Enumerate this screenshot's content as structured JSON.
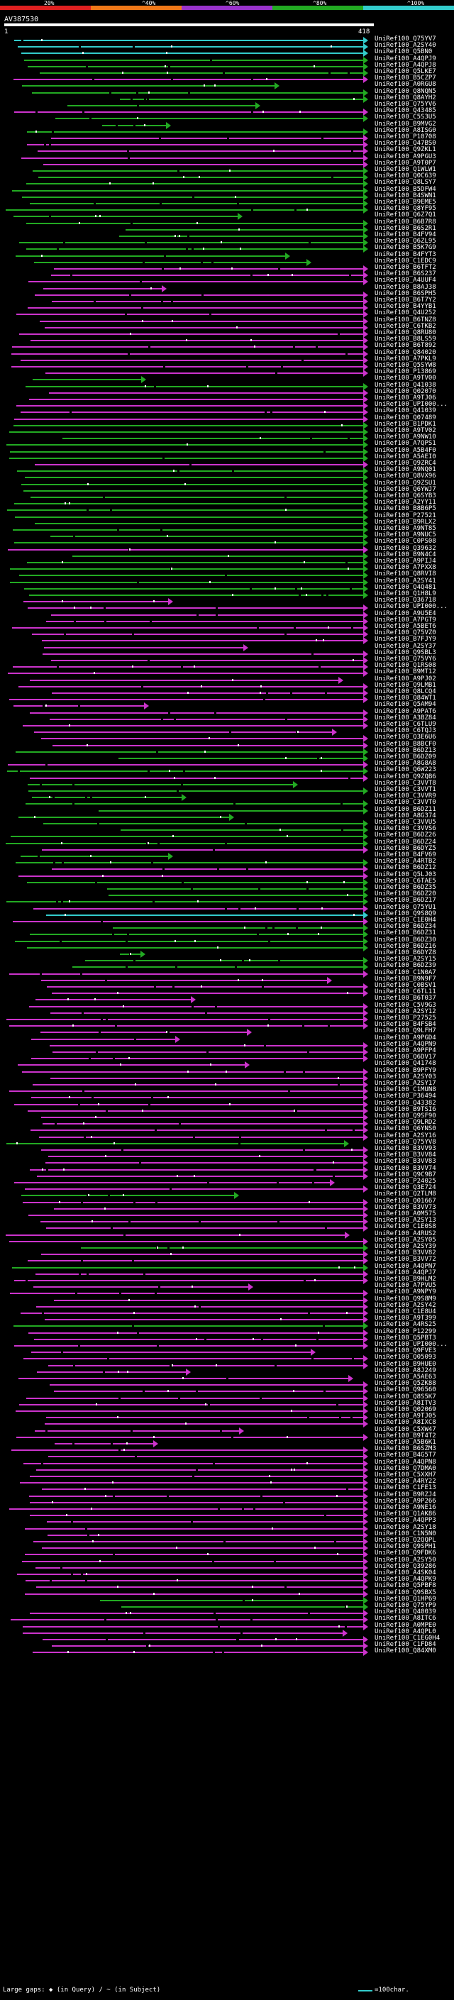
{
  "scale": {
    "bands": [
      {
        "color": "#e02020"
      },
      {
        "color": "#f07818"
      },
      {
        "color": "#9933cc"
      },
      {
        "color": "#22aa22"
      },
      {
        "color": "#33cccc"
      }
    ],
    "labels": [
      "20%",
      "^40%",
      "^60%",
      "^80%",
      "^100%"
    ]
  },
  "query": {
    "title": "AV387530",
    "start": "1",
    "end": "418"
  },
  "hits": [
    {
      "label": "UniRef100_Q75YV7",
      "color": "#33cccc"
    },
    {
      "label": "UniRef100_A2SY40",
      "color": "#33cccc"
    },
    {
      "label": "UniRef100_Q5BN0",
      "color": "#33cccc"
    },
    {
      "label": "UniRef100_A4QPJ9",
      "color": "#22aa22"
    },
    {
      "label": "UniRef100_A4QPJ8",
      "color": "#22aa22"
    },
    {
      "label": "UniRef100_Q5LKE7",
      "color": "#22aa22"
    },
    {
      "label": "UniRef100_B5CZP7",
      "color": "#cc33cc"
    },
    {
      "label": "UniRef100_A0RGU8",
      "color": "#22aa22"
    },
    {
      "label": "UniRef100_Q8NQN5",
      "color": "#22aa22"
    },
    {
      "label": "UniRef100_Q8AYH2",
      "color": "#22aa22"
    },
    {
      "label": "UniRef100_Q75YV6",
      "color": "#22aa22"
    },
    {
      "label": "UniRef100_Q43485",
      "color": "#cc33cc"
    },
    {
      "label": "UniRef100_C5S3U5",
      "color": "#22aa22"
    },
    {
      "label": "UniRef100_B9MVG2",
      "color": "#22aa22"
    },
    {
      "label": "UniRef100_A8ISG0",
      "color": "#22aa22"
    },
    {
      "label": "UniRef100_P10708",
      "color": "#cc33cc"
    },
    {
      "label": "UniRef100_Q47BS0",
      "color": "#cc33cc"
    },
    {
      "label": "UniRef100_Q9ZKL1",
      "color": "#cc33cc"
    },
    {
      "label": "UniRef100_A9PGU3",
      "color": "#cc33cc"
    },
    {
      "label": "UniRef100_A9T0P7",
      "color": "#cc33cc"
    },
    {
      "label": "UniRef100_Q1WLW1",
      "color": "#22aa22"
    },
    {
      "label": "UniRef100_Q0C639",
      "color": "#22aa22"
    },
    {
      "label": "UniRef100_Q8LSY7",
      "color": "#22aa22"
    },
    {
      "label": "UniRef100_B5DFW4",
      "color": "#22aa22"
    },
    {
      "label": "UniRef100_B4SWN1",
      "color": "#22aa22"
    },
    {
      "label": "UniRef100_B9EME5",
      "color": "#22aa22"
    },
    {
      "label": "UniRef100_Q8YF95",
      "color": "#22aa22"
    },
    {
      "label": "UniRef100_Q6Z7Q1",
      "color": "#22aa22"
    },
    {
      "label": "UniRef100_B6B7R8",
      "color": "#22aa22"
    },
    {
      "label": "UniRef100_B6S2R1",
      "color": "#22aa22"
    },
    {
      "label": "UniRef100_B4FV94",
      "color": "#22aa22"
    },
    {
      "label": "UniRef100_Q6ZL95",
      "color": "#22aa22"
    },
    {
      "label": "UniRef100_B5K7G9",
      "color": "#22aa22"
    },
    {
      "label": "UniRef100_B4FYT3",
      "color": "#22aa22"
    },
    {
      "label": "UniRef100_C1EDC9",
      "color": "#22aa22"
    },
    {
      "label": "UniRef100_B6TFT2",
      "color": "#cc33cc"
    },
    {
      "label": "UniRef100_B6S237",
      "color": "#cc33cc"
    },
    {
      "label": "UniRef100_A4UUF4",
      "color": "#cc33cc"
    },
    {
      "label": "UniRef100_B8AJ38",
      "color": "#cc33cc"
    },
    {
      "label": "UniRef100_B6SPH5",
      "color": "#cc33cc"
    },
    {
      "label": "UniRef100_B6T7Y2",
      "color": "#cc33cc"
    },
    {
      "label": "UniRef100_B4YYB1",
      "color": "#cc33cc"
    },
    {
      "label": "UniRef100_Q4U252",
      "color": "#cc33cc"
    },
    {
      "label": "UniRef100_B6TNZ8",
      "color": "#cc33cc"
    },
    {
      "label": "UniRef100_C6TKB2",
      "color": "#cc33cc"
    },
    {
      "label": "UniRef100_Q8RU80",
      "color": "#cc33cc"
    },
    {
      "label": "UniRef100_B8LS59",
      "color": "#cc33cc"
    },
    {
      "label": "UniRef100_B6T892",
      "color": "#cc33cc"
    },
    {
      "label": "UniRef100_Q84020",
      "color": "#cc33cc"
    },
    {
      "label": "UniRef100_A7PKL9",
      "color": "#cc33cc"
    },
    {
      "label": "UniRef100_Q5SYW8",
      "color": "#cc33cc"
    },
    {
      "label": "UniRef100_P13869",
      "color": "#cc33cc"
    },
    {
      "label": "UniRef100_A9TV00",
      "color": "#22aa22"
    },
    {
      "label": "UniRef100_Q41038",
      "color": "#22aa22"
    },
    {
      "label": "UniRef100_Q02070",
      "color": "#cc33cc"
    },
    {
      "label": "UniRef100_A9TJ06",
      "color": "#cc33cc"
    },
    {
      "label": "UniRef100_UPI000...",
      "color": "#cc33cc"
    },
    {
      "label": "UniRef100_Q41039",
      "color": "#cc33cc"
    },
    {
      "label": "UniRef100_Q07489",
      "color": "#cc33cc"
    },
    {
      "label": "UniRef100_B1PDK1",
      "color": "#22aa22"
    },
    {
      "label": "UniRef100_A9TV02",
      "color": "#22aa22"
    },
    {
      "label": "UniRef100_A9NW10",
      "color": "#22aa22"
    },
    {
      "label": "UniRef100_A7QPS1",
      "color": "#22aa22"
    },
    {
      "label": "UniRef100_A5B4F0",
      "color": "#22aa22"
    },
    {
      "label": "UniRef100_A5AEI0",
      "color": "#22aa22"
    },
    {
      "label": "UniRef100_Q9ZRC4",
      "color": "#cc33cc"
    },
    {
      "label": "UniRef100_A9NQ01",
      "color": "#22aa22"
    },
    {
      "label": "UniRef100_Q8VX96",
      "color": "#22aa22"
    },
    {
      "label": "UniRef100_Q9ZSU1",
      "color": "#22aa22"
    },
    {
      "label": "UniRef100_Q6YWJ7",
      "color": "#22aa22"
    },
    {
      "label": "UniRef100_Q6SYB3",
      "color": "#22aa22"
    },
    {
      "label": "UniRef100_A2YY11",
      "color": "#22aa22"
    },
    {
      "label": "UniRef100_B8B6P5",
      "color": "#22aa22"
    },
    {
      "label": "UniRef100_P27521",
      "color": "#22aa22"
    },
    {
      "label": "UniRef100_B9RLX2",
      "color": "#22aa22"
    },
    {
      "label": "UniRef100_A9NT85",
      "color": "#22aa22"
    },
    {
      "label": "UniRef100_A9NUC5",
      "color": "#22aa22"
    },
    {
      "label": "UniRef100_C0PS08",
      "color": "#22aa22"
    },
    {
      "label": "UniRef100_Q39632",
      "color": "#cc33cc"
    },
    {
      "label": "UniRef100_B9N4C4",
      "color": "#22aa22"
    },
    {
      "label": "UniRef100_A9PIJ4",
      "color": "#22aa22"
    },
    {
      "label": "UniRef100_A7PXX8",
      "color": "#22aa22"
    },
    {
      "label": "UniRef100_Q8RVI8",
      "color": "#22aa22"
    },
    {
      "label": "UniRef100_A2SY41",
      "color": "#22aa22"
    },
    {
      "label": "UniRef100_Q4Q481",
      "color": "#22aa22"
    },
    {
      "label": "UniRef100_Q1H8L9",
      "color": "#22aa22"
    },
    {
      "label": "UniRef100_Q36718",
      "color": "#cc33cc"
    },
    {
      "label": "UniRef100_UPI000...",
      "color": "#cc33cc"
    },
    {
      "label": "UniRef100_A9U5E4",
      "color": "#cc33cc"
    },
    {
      "label": "UniRef100_A7PGT9",
      "color": "#cc33cc"
    },
    {
      "label": "UniRef100_A5BET6",
      "color": "#cc33cc"
    },
    {
      "label": "UniRef100_Q75VZ0",
      "color": "#cc33cc"
    },
    {
      "label": "UniRef100_B7FJY9",
      "color": "#cc33cc"
    },
    {
      "label": "UniRef100_A2SY37",
      "color": "#cc33cc"
    },
    {
      "label": "UniRef100_Q9SBL3",
      "color": "#cc33cc"
    },
    {
      "label": "UniRef100_Q75VY6",
      "color": "#cc33cc"
    },
    {
      "label": "UniRef100_Q1RS08",
      "color": "#cc33cc"
    },
    {
      "label": "UniRef100_B9MT12",
      "color": "#cc33cc"
    },
    {
      "label": "UniRef100_A9PJ02",
      "color": "#cc33cc"
    },
    {
      "label": "UniRef100_Q9LMB1",
      "color": "#cc33cc"
    },
    {
      "label": "UniRef100_Q8LCQ4",
      "color": "#cc33cc"
    },
    {
      "label": "UniRef100_Q84WT1",
      "color": "#cc33cc"
    },
    {
      "label": "UniRef100_Q5AM94",
      "color": "#cc33cc"
    },
    {
      "label": "UniRef100_A9PAT6",
      "color": "#cc33cc"
    },
    {
      "label": "UniRef100_A3BZ84",
      "color": "#cc33cc"
    },
    {
      "label": "UniRef100_C6TLU9",
      "color": "#cc33cc"
    },
    {
      "label": "UniRef100_C6TQJ3",
      "color": "#cc33cc"
    },
    {
      "label": "UniRef100_Q3E6U6",
      "color": "#cc33cc"
    },
    {
      "label": "UniRef100_B8BCF0",
      "color": "#cc33cc"
    },
    {
      "label": "UniRef100_B6DZ13",
      "color": "#22aa22"
    },
    {
      "label": "UniRef100_B6DZ09",
      "color": "#22aa22"
    },
    {
      "label": "UniRef100_A8G8A8",
      "color": "#cc33cc"
    },
    {
      "label": "UniRef100_Q6W223",
      "color": "#22aa22"
    },
    {
      "label": "UniRef100_Q9ZQB6",
      "color": "#cc33cc"
    },
    {
      "label": "UniRef100_C3VVT8",
      "color": "#22aa22"
    },
    {
      "label": "UniRef100_C3VVT1",
      "color": "#22aa22"
    },
    {
      "label": "UniRef100_C3VVR9",
      "color": "#22aa22"
    },
    {
      "label": "UniRef100_C3VVT0",
      "color": "#22aa22"
    },
    {
      "label": "UniRef100_B6DZ11",
      "color": "#22aa22"
    },
    {
      "label": "UniRef100_A8G374",
      "color": "#22aa22"
    },
    {
      "label": "UniRef100_C3VVU5",
      "color": "#22aa22"
    },
    {
      "label": "UniRef100_C3VVS6",
      "color": "#22aa22"
    },
    {
      "label": "UniRef100_B6DZ26",
      "color": "#22aa22"
    },
    {
      "label": "UniRef100_B6DZ24",
      "color": "#22aa22"
    },
    {
      "label": "UniRef100_B6DYZ5",
      "color": "#cc33cc"
    },
    {
      "label": "UniRef100_B4FV69",
      "color": "#22aa22"
    },
    {
      "label": "UniRef100_A4RTB2",
      "color": "#22aa22"
    },
    {
      "label": "UniRef100_B6DZ12",
      "color": "#cc33cc"
    },
    {
      "label": "UniRef100_Q5LJ03",
      "color": "#cc33cc"
    },
    {
      "label": "UniRef100_C6TAE5",
      "color": "#22aa22"
    },
    {
      "label": "UniRef100_B6DZ35",
      "color": "#22aa22"
    },
    {
      "label": "UniRef100_B6DZ20",
      "color": "#22aa22"
    },
    {
      "label": "UniRef100_B6DZ17",
      "color": "#22aa22"
    },
    {
      "label": "UniRef100_Q75YU1",
      "color": "#cc33cc"
    },
    {
      "label": "UniRef100_Q9S8Q9",
      "color": "#33cccc"
    },
    {
      "label": "UniRef100_C1E0H4",
      "color": "#cc33cc"
    },
    {
      "label": "UniRef100_B6DZ34",
      "color": "#22aa22"
    },
    {
      "label": "UniRef100_B6DZ31",
      "color": "#22aa22"
    },
    {
      "label": "UniRef100_B6DZ30",
      "color": "#22aa22"
    },
    {
      "label": "UniRef100_B6DZ16",
      "color": "#22aa22"
    },
    {
      "label": "UniRef100_B6DYZ8",
      "color": "#22aa22"
    },
    {
      "label": "UniRef100_A2SY15",
      "color": "#22aa22"
    },
    {
      "label": "UniRef100_B6DZ39",
      "color": "#22aa22"
    },
    {
      "label": "UniRef100_C1N0A7",
      "color": "#cc33cc"
    },
    {
      "label": "UniRef100_B9N9F7",
      "color": "#cc33cc"
    },
    {
      "label": "UniRef100_C0BSV1",
      "color": "#cc33cc"
    },
    {
      "label": "UniRef100_C6TL11",
      "color": "#cc33cc"
    },
    {
      "label": "UniRef100_B6T037",
      "color": "#cc33cc"
    },
    {
      "label": "UniRef100_C5V9G3",
      "color": "#cc33cc"
    },
    {
      "label": "UniRef100_A2SY12",
      "color": "#cc33cc"
    },
    {
      "label": "UniRef100_P27525",
      "color": "#cc33cc"
    },
    {
      "label": "UniRef100_B4FSB4",
      "color": "#cc33cc"
    },
    {
      "label": "UniRef100_Q9LFH7",
      "color": "#cc33cc"
    },
    {
      "label": "UniRef100_A9PGD4",
      "color": "#cc33cc"
    },
    {
      "label": "UniRef100_A4QPN9",
      "color": "#cc33cc"
    },
    {
      "label": "UniRef100_A9PFP4",
      "color": "#cc33cc"
    },
    {
      "label": "UniRef100_Q6DV17",
      "color": "#cc33cc"
    },
    {
      "label": "UniRef100_Q41748",
      "color": "#cc33cc"
    },
    {
      "label": "UniRef100_B9PFY9",
      "color": "#cc33cc"
    },
    {
      "label": "UniRef100_A2SY03",
      "color": "#cc33cc"
    },
    {
      "label": "UniRef100_A2SY17",
      "color": "#cc33cc"
    },
    {
      "label": "UniRef100_C1MUN8",
      "color": "#cc33cc"
    },
    {
      "label": "UniRef100_P36494",
      "color": "#cc33cc"
    },
    {
      "label": "UniRef100_Q43382",
      "color": "#cc33cc"
    },
    {
      "label": "UniRef100_B9TSI6",
      "color": "#cc33cc"
    },
    {
      "label": "UniRef100_Q9SF90",
      "color": "#cc33cc"
    },
    {
      "label": "UniRef100_Q9LRD2",
      "color": "#cc33cc"
    },
    {
      "label": "UniRef100_Q6YNS0",
      "color": "#cc33cc"
    },
    {
      "label": "UniRef100_A2SY16",
      "color": "#cc33cc"
    },
    {
      "label": "UniRef100_Q75YV8",
      "color": "#22aa22"
    },
    {
      "label": "UniRef100_B3VV93",
      "color": "#cc33cc"
    },
    {
      "label": "UniRef100_B3VV84",
      "color": "#cc33cc"
    },
    {
      "label": "UniRef100_B3VV83",
      "color": "#cc33cc"
    },
    {
      "label": "UniRef100_B3VV74",
      "color": "#cc33cc"
    },
    {
      "label": "UniRef100_Q9C9B7",
      "color": "#cc33cc"
    },
    {
      "label": "UniRef100_P24025",
      "color": "#cc33cc"
    },
    {
      "label": "UniRef100_Q3E724",
      "color": "#cc33cc"
    },
    {
      "label": "UniRef100_Q2TLM8",
      "color": "#22aa22"
    },
    {
      "label": "UniRef100_Q01667",
      "color": "#cc33cc"
    },
    {
      "label": "UniRef100_B3VV73",
      "color": "#cc33cc"
    },
    {
      "label": "UniRef100_A0M575",
      "color": "#cc33cc"
    },
    {
      "label": "UniRef100_A2SY13",
      "color": "#cc33cc"
    },
    {
      "label": "UniRef100_C1E0S8",
      "color": "#cc33cc"
    },
    {
      "label": "UniRef100_A4RUS2",
      "color": "#cc33cc"
    },
    {
      "label": "UniRef100_A2SY05",
      "color": "#cc33cc"
    },
    {
      "label": "UniRef100_A2SY39",
      "color": "#22aa22"
    },
    {
      "label": "UniRef100_B3VV82",
      "color": "#cc33cc"
    },
    {
      "label": "UniRef100_B3VV72",
      "color": "#cc33cc"
    },
    {
      "label": "UniRef100_A4QPN7",
      "color": "#22aa22"
    },
    {
      "label": "UniRef100_A4QPJ7",
      "color": "#cc33cc"
    },
    {
      "label": "UniRef100_B9HLM2",
      "color": "#cc33cc"
    },
    {
      "label": "UniRef100_A7PVU5",
      "color": "#cc33cc"
    },
    {
      "label": "UniRef100_A9NPY9",
      "color": "#cc33cc"
    },
    {
      "label": "UniRef100_Q9S8M9",
      "color": "#cc33cc"
    },
    {
      "label": "UniRef100_A2SY42",
      "color": "#cc33cc"
    },
    {
      "label": "UniRef100_C1E8U4",
      "color": "#cc33cc"
    },
    {
      "label": "UniRef100_A9T399",
      "color": "#cc33cc"
    },
    {
      "label": "UniRef100_A4RS25",
      "color": "#22aa22"
    },
    {
      "label": "UniRef100_P12299",
      "color": "#cc33cc"
    },
    {
      "label": "UniRef100_Q5PBT3",
      "color": "#cc33cc"
    },
    {
      "label": "UniRef100_UPI000...",
      "color": "#cc33cc"
    },
    {
      "label": "UniRef100_Q9FVE3",
      "color": "#cc33cc"
    },
    {
      "label": "UniRef100_Q05093",
      "color": "#cc33cc"
    },
    {
      "label": "UniRef100_B9HUE0",
      "color": "#cc33cc"
    },
    {
      "label": "UniRef100_A8J249",
      "color": "#cc33cc"
    },
    {
      "label": "UniRef100_A5AE63",
      "color": "#cc33cc"
    },
    {
      "label": "UniRef100_Q5ZK88",
      "color": "#cc33cc"
    },
    {
      "label": "UniRef100_Q96560",
      "color": "#cc33cc"
    },
    {
      "label": "UniRef100_Q8S5K7",
      "color": "#cc33cc"
    },
    {
      "label": "UniRef100_A8ITV3",
      "color": "#cc33cc"
    },
    {
      "label": "UniRef100_Q02069",
      "color": "#cc33cc"
    },
    {
      "label": "UniRef100_A9TJ05",
      "color": "#cc33cc"
    },
    {
      "label": "UniRef100_A8IXC8",
      "color": "#cc33cc"
    },
    {
      "label": "UniRef100_C5XW47",
      "color": "#cc33cc"
    },
    {
      "label": "UniRef100_B9T4T2",
      "color": "#cc33cc"
    },
    {
      "label": "UniRef100_A5B6K1",
      "color": "#cc33cc"
    },
    {
      "label": "UniRef100_B6SZM3",
      "color": "#cc33cc"
    },
    {
      "label": "UniRef100_B4G5T7",
      "color": "#cc33cc"
    },
    {
      "label": "UniRef100_A4QPN8",
      "color": "#cc33cc"
    },
    {
      "label": "UniRef100_Q7DMA0",
      "color": "#cc33cc"
    },
    {
      "label": "UniRef100_C5XXH7",
      "color": "#cc33cc"
    },
    {
      "label": "UniRef100_A4RY22",
      "color": "#cc33cc"
    },
    {
      "label": "UniRef100_C1FE13",
      "color": "#cc33cc"
    },
    {
      "label": "UniRef100_B9RZJ4",
      "color": "#cc33cc"
    },
    {
      "label": "UniRef100_A9P266",
      "color": "#cc33cc"
    },
    {
      "label": "UniRef100_A9NE16",
      "color": "#cc33cc"
    },
    {
      "label": "UniRef100_Q1AK86",
      "color": "#cc33cc"
    },
    {
      "label": "UniRef100_A4QPP3",
      "color": "#cc33cc"
    },
    {
      "label": "UniRef100_A2SY18",
      "color": "#cc33cc"
    },
    {
      "label": "UniRef100_C1N5N0",
      "color": "#cc33cc"
    },
    {
      "label": "UniRef100_Q2QQPL",
      "color": "#cc33cc"
    },
    {
      "label": "UniRef100_Q9SPH1",
      "color": "#cc33cc"
    },
    {
      "label": "UniRef100_Q9FDK6",
      "color": "#cc33cc"
    },
    {
      "label": "UniRef100_A2SY50",
      "color": "#cc33cc"
    },
    {
      "label": "UniRef100_Q39286",
      "color": "#cc33cc"
    },
    {
      "label": "UniRef100_A4SK04",
      "color": "#cc33cc"
    },
    {
      "label": "UniRef100_A4QPK9",
      "color": "#cc33cc"
    },
    {
      "label": "UniRef100_Q5PBF8",
      "color": "#cc33cc"
    },
    {
      "label": "UniRef100_Q9SBX5",
      "color": "#cc33cc"
    },
    {
      "label": "UniRef100_Q1HP69",
      "color": "#22aa22"
    },
    {
      "label": "UniRef100_Q75YP9",
      "color": "#22aa22"
    },
    {
      "label": "UniRef100_Q40039",
      "color": "#cc33cc"
    },
    {
      "label": "UniRef100_A8ITC6",
      "color": "#cc33cc"
    },
    {
      "label": "UniRef100_A0MPE0",
      "color": "#cc33cc"
    },
    {
      "label": "UniRef100_A4QPL0",
      "color": "#cc33cc"
    },
    {
      "label": "UniRef100_C1EG0H4",
      "color": "#cc33cc"
    },
    {
      "label": "UniRef100_C1FD84",
      "color": "#cc33cc"
    },
    {
      "label": "UniRef100_Q84XM0",
      "color": "#cc33cc"
    }
  ],
  "footer": {
    "text": "Large gaps: ◆ (in Query) / ~ (in Subject)",
    "legend": "=100char."
  }
}
